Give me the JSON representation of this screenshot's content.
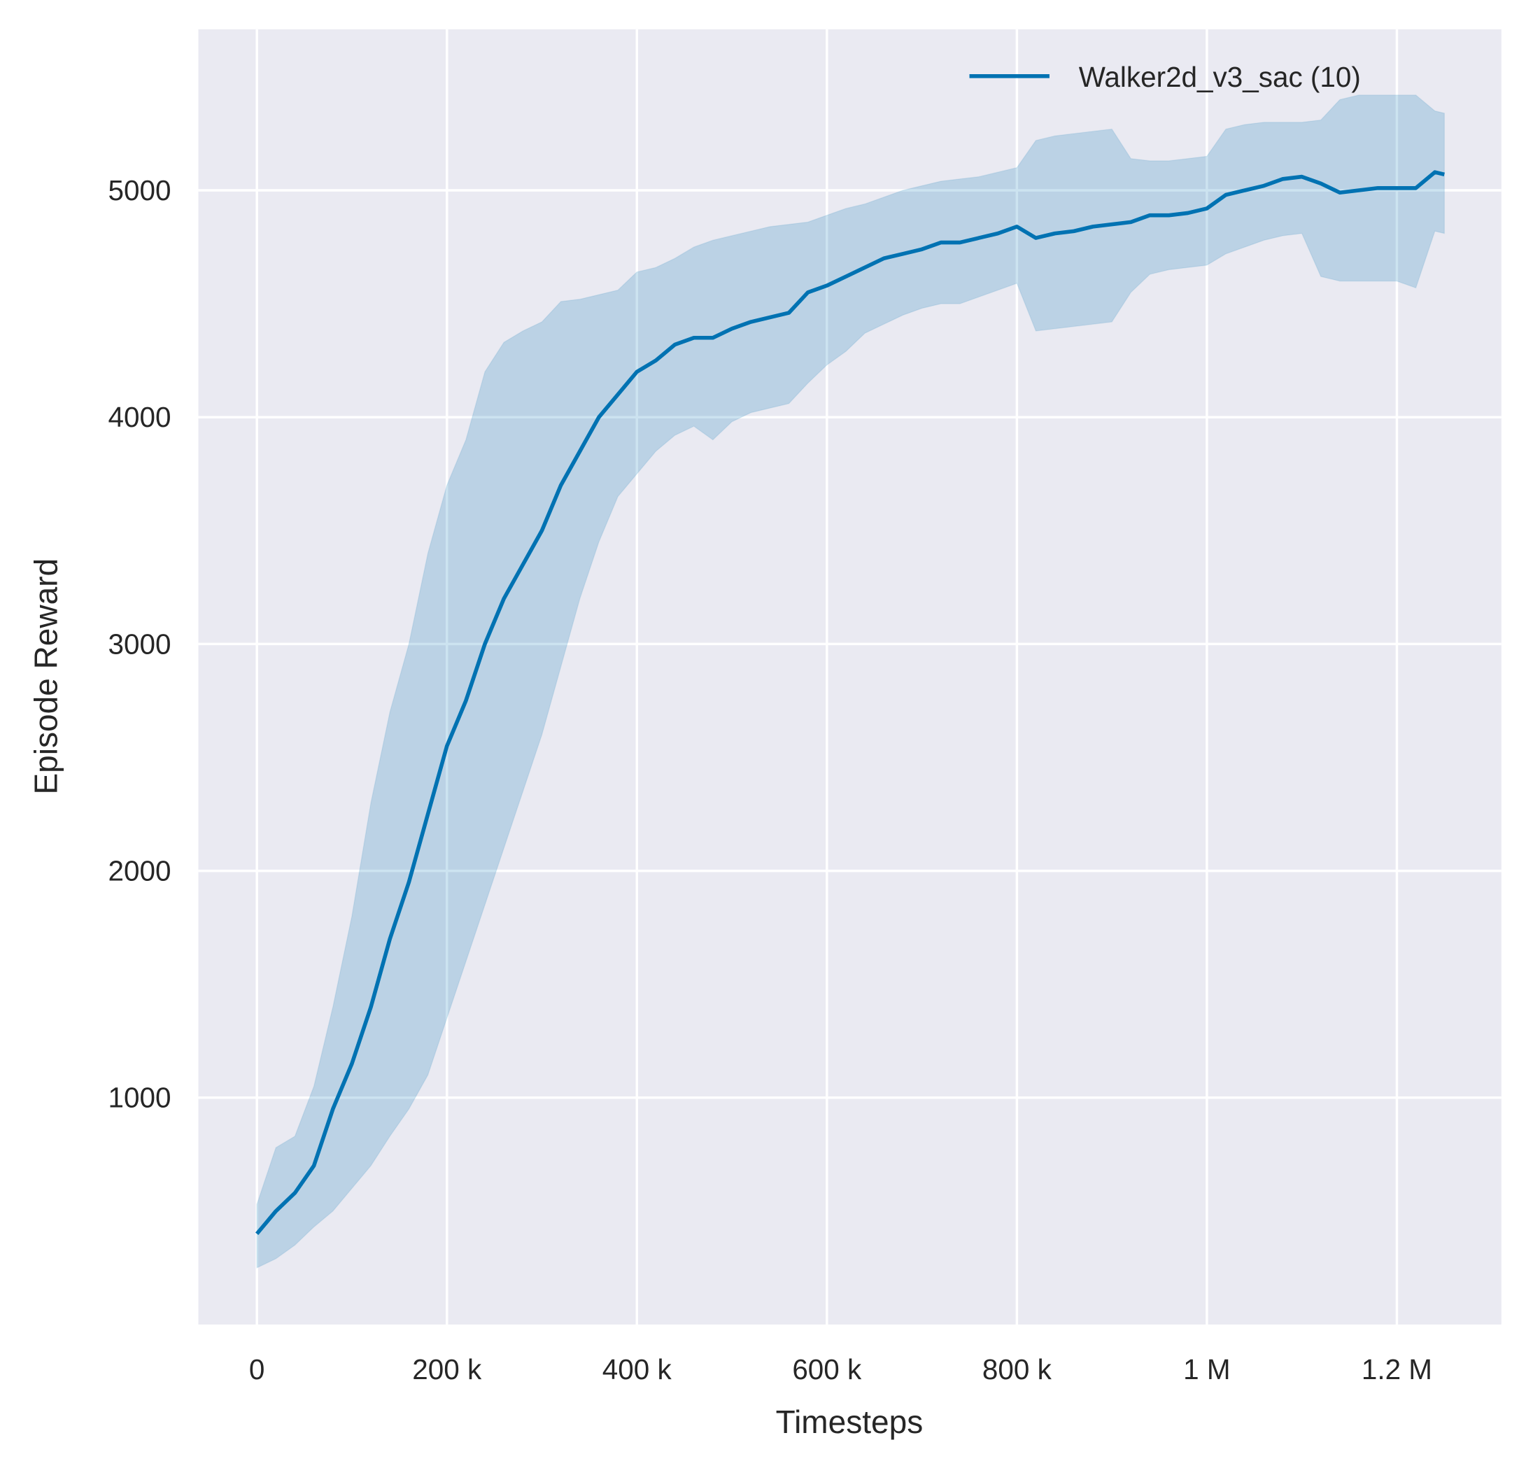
{
  "chart_data": {
    "type": "line",
    "title": "",
    "xlabel": "Timesteps",
    "ylabel": "Episode Reward",
    "xlim": [
      -61600,
      1310000
    ],
    "ylim": [
      0,
      5710
    ],
    "grid": true,
    "legend": "top-right",
    "colors": {
      "line": "#0072b2",
      "band": "#0072b2",
      "background": "#eaeaf2",
      "grid": "#ffffff"
    },
    "xticks": [
      {
        "value": 0,
        "label": "0"
      },
      {
        "value": 200000,
        "label": "200 k"
      },
      {
        "value": 400000,
        "label": "400 k"
      },
      {
        "value": 600000,
        "label": "600 k"
      },
      {
        "value": 800000,
        "label": "800 k"
      },
      {
        "value": 1000000,
        "label": "1 M"
      },
      {
        "value": 1200000,
        "label": "1.2 M"
      }
    ],
    "yticks": [
      {
        "value": 1000,
        "label": "1000"
      },
      {
        "value": 2000,
        "label": "2000"
      },
      {
        "value": 3000,
        "label": "3000"
      },
      {
        "value": 4000,
        "label": "4000"
      },
      {
        "value": 5000,
        "label": "5000"
      }
    ],
    "series": [
      {
        "name": "Walker2d_v3_sac (10)",
        "x": [
          0,
          20000,
          40000,
          60000,
          80000,
          100000,
          120000,
          140000,
          160000,
          180000,
          200000,
          220000,
          240000,
          260000,
          280000,
          300000,
          320000,
          340000,
          360000,
          380000,
          400000,
          420000,
          440000,
          460000,
          480000,
          500000,
          520000,
          540000,
          560000,
          580000,
          600000,
          620000,
          640000,
          660000,
          680000,
          700000,
          720000,
          740000,
          760000,
          780000,
          800000,
          820000,
          840000,
          860000,
          880000,
          900000,
          920000,
          940000,
          960000,
          980000,
          1000000,
          1020000,
          1040000,
          1060000,
          1080000,
          1100000,
          1120000,
          1140000,
          1160000,
          1180000,
          1200000,
          1220000,
          1240000,
          1250000
        ],
        "mean": [
          400,
          500,
          580,
          700,
          950,
          1150,
          1400,
          1700,
          1950,
          2250,
          2550,
          2750,
          3000,
          3200,
          3350,
          3500,
          3700,
          3850,
          4000,
          4100,
          4200,
          4250,
          4320,
          4350,
          4350,
          4390,
          4420,
          4440,
          4460,
          4550,
          4580,
          4620,
          4660,
          4700,
          4720,
          4740,
          4770,
          4770,
          4790,
          4810,
          4840,
          4790,
          4810,
          4820,
          4840,
          4850,
          4860,
          4890,
          4890,
          4900,
          4920,
          4980,
          5000,
          5020,
          5050,
          5060,
          5030,
          4990,
          5000,
          5010,
          5010,
          5010,
          5080,
          5070
        ],
        "upper": [
          530,
          780,
          830,
          1050,
          1400,
          1800,
          2300,
          2700,
          3000,
          3400,
          3700,
          3900,
          4200,
          4330,
          4380,
          4420,
          4510,
          4520,
          4540,
          4560,
          4640,
          4660,
          4700,
          4750,
          4780,
          4800,
          4820,
          4840,
          4850,
          4860,
          4890,
          4920,
          4940,
          4970,
          5000,
          5020,
          5040,
          5050,
          5060,
          5080,
          5100,
          5220,
          5240,
          5250,
          5260,
          5270,
          5140,
          5130,
          5130,
          5140,
          5150,
          5270,
          5290,
          5300,
          5300,
          5300,
          5310,
          5400,
          5420,
          5420,
          5420,
          5420,
          5350,
          5340
        ],
        "lower": [
          250,
          290,
          350,
          430,
          500,
          600,
          700,
          830,
          950,
          1100,
          1350,
          1600,
          1850,
          2100,
          2350,
          2600,
          2900,
          3200,
          3450,
          3650,
          3750,
          3850,
          3920,
          3960,
          3900,
          3980,
          4020,
          4040,
          4060,
          4150,
          4230,
          4290,
          4370,
          4410,
          4450,
          4480,
          4500,
          4500,
          4530,
          4560,
          4590,
          4380,
          4390,
          4400,
          4410,
          4420,
          4550,
          4630,
          4650,
          4660,
          4670,
          4720,
          4750,
          4780,
          4800,
          4810,
          4620,
          4600,
          4600,
          4600,
          4600,
          4570,
          4820,
          4810
        ]
      }
    ]
  }
}
